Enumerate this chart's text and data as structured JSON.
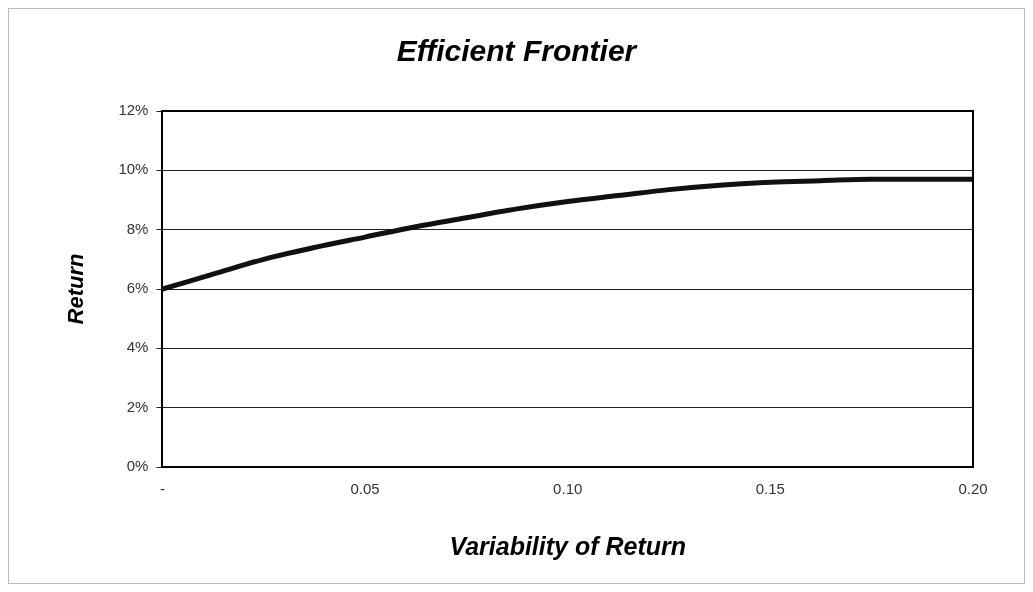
{
  "chart_data": {
    "type": "line",
    "title": "Efficient Frontier",
    "xlabel": "Variability of Return",
    "ylabel": "Return",
    "x": [
      0,
      0.0125,
      0.025,
      0.0375,
      0.05,
      0.0625,
      0.075,
      0.0875,
      0.1,
      0.1125,
      0.125,
      0.1375,
      0.15,
      0.1625,
      0.175,
      0.1875,
      0.2
    ],
    "series": [
      {
        "color": "#111111",
        "values": [
          6.0,
          6.5,
          7.0,
          7.4,
          7.75,
          8.1,
          8.4,
          8.7,
          8.95,
          9.15,
          9.35,
          9.5,
          9.6,
          9.65,
          9.7,
          9.7,
          9.7
        ]
      }
    ],
    "xlim": [
      0,
      0.2
    ],
    "xticks": [
      {
        "value": 0,
        "label": "-"
      },
      {
        "value": 0.05,
        "label": "0.05"
      },
      {
        "value": 0.1,
        "label": "0.10"
      },
      {
        "value": 0.15,
        "label": "0.15"
      },
      {
        "value": 0.2,
        "label": "0.20"
      }
    ],
    "ylim": [
      0,
      12
    ],
    "yticks": [
      {
        "value": 0,
        "label": "0%"
      },
      {
        "value": 2,
        "label": "2%"
      },
      {
        "value": 4,
        "label": "4%"
      },
      {
        "value": 6,
        "label": "6%"
      },
      {
        "value": 8,
        "label": "8%"
      },
      {
        "value": 10,
        "label": "10%"
      },
      {
        "value": 12,
        "label": "12%"
      }
    ],
    "grid": "y",
    "legend": false,
    "marker": "none",
    "line_style": "solid"
  }
}
